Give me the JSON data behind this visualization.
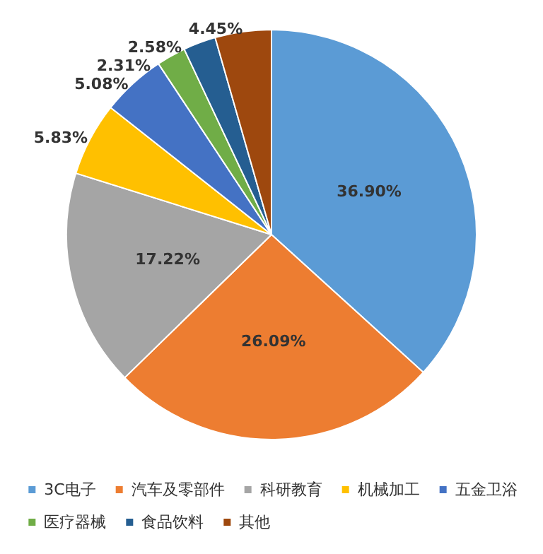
{
  "chart_data": {
    "type": "pie",
    "categories": [
      "3C电子",
      "汽车及零部件",
      "科研教育",
      "机械加工",
      "五金卫浴",
      "医疗器械",
      "食品饮料",
      "其他"
    ],
    "values": [
      36.9,
      26.09,
      17.22,
      5.83,
      5.08,
      2.31,
      2.58,
      4.45
    ],
    "value_labels": [
      "36.90%",
      "26.09%",
      "17.22%",
      "5.83%",
      "5.08%",
      "2.31%",
      "2.58%",
      "4.45%"
    ],
    "colors": [
      "#5b9bd5",
      "#ed7d31",
      "#a5a5a5",
      "#ffc000",
      "#4472c4",
      "#70ad47",
      "#255e91",
      "#9e480e"
    ],
    "legend": "bottom"
  }
}
